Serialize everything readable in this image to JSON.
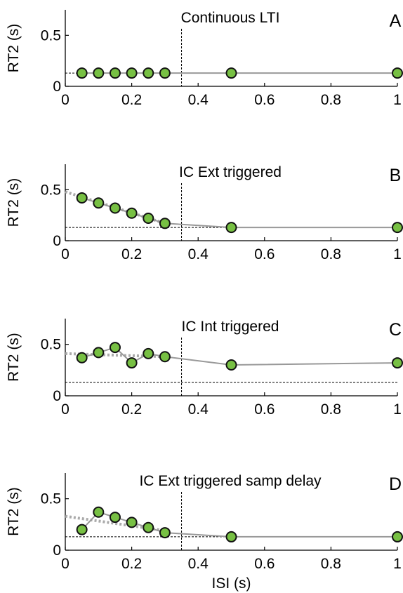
{
  "x_axis_label": "ISI (s)",
  "chart_data": [
    {
      "type": "line",
      "panel_letter": "A",
      "title": "Continuous LTI",
      "ylabel": "RT2 (s)",
      "xlabel": "",
      "xlim": [
        0,
        1
      ],
      "ylim": [
        0,
        0.75
      ],
      "xticks": [
        "0",
        "0.2",
        "0.4",
        "0.6",
        "0.8",
        "1"
      ],
      "yticks": [
        "0",
        "0.5"
      ],
      "x": [
        0.05,
        0.1,
        0.15,
        0.2,
        0.25,
        0.3,
        0.5,
        1
      ],
      "y": [
        0.13,
        0.13,
        0.13,
        0.13,
        0.13,
        0.13,
        0.13,
        0.13
      ],
      "baseline": 0.13,
      "vline_x": 0.35,
      "trend": null
    },
    {
      "type": "line",
      "panel_letter": "B",
      "title": "IC Ext triggered",
      "ylabel": "RT2 (s)",
      "xlabel": "",
      "xlim": [
        0,
        1
      ],
      "ylim": [
        0,
        0.75
      ],
      "xticks": [
        "0",
        "0.2",
        "0.4",
        "0.6",
        "0.8",
        "1"
      ],
      "yticks": [
        "0",
        "0.5"
      ],
      "x": [
        0.05,
        0.1,
        0.15,
        0.2,
        0.25,
        0.3,
        0.5,
        1
      ],
      "y": [
        0.42,
        0.37,
        0.32,
        0.27,
        0.22,
        0.17,
        0.13,
        0.13
      ],
      "baseline": 0.13,
      "vline_x": 0.35,
      "trend": {
        "x": [
          0,
          0.3
        ],
        "y": [
          0.48,
          0.17
        ]
      }
    },
    {
      "type": "line",
      "panel_letter": "C",
      "title": "IC Int triggered",
      "ylabel": "RT2 (s)",
      "xlabel": "",
      "xlim": [
        0,
        1
      ],
      "ylim": [
        0,
        0.75
      ],
      "xticks": [
        "0",
        "0.2",
        "0.4",
        "0.6",
        "0.8",
        "1"
      ],
      "yticks": [
        "0",
        "0.5"
      ],
      "x": [
        0.05,
        0.1,
        0.15,
        0.2,
        0.25,
        0.3,
        0.5,
        1
      ],
      "y": [
        0.37,
        0.42,
        0.47,
        0.32,
        0.41,
        0.38,
        0.3,
        0.32
      ],
      "baseline": 0.13,
      "vline_x": 0.35,
      "trend": {
        "x": [
          0,
          0.3
        ],
        "y": [
          0.41,
          0.38
        ]
      }
    },
    {
      "type": "line",
      "panel_letter": "D",
      "title": "IC Ext triggered samp delay",
      "ylabel": "RT2 (s)",
      "xlabel": "ISI (s)",
      "xlim": [
        0,
        1
      ],
      "ylim": [
        0,
        0.75
      ],
      "xticks": [
        "0",
        "0.2",
        "0.4",
        "0.6",
        "0.8",
        "1"
      ],
      "yticks": [
        "0",
        "0.5"
      ],
      "x": [
        0.05,
        0.1,
        0.15,
        0.2,
        0.25,
        0.3,
        0.5,
        1
      ],
      "y": [
        0.2,
        0.37,
        0.32,
        0.27,
        0.22,
        0.17,
        0.13,
        0.13
      ],
      "baseline": 0.13,
      "vline_x": 0.35,
      "trend": {
        "x": [
          0,
          0.3
        ],
        "y": [
          0.33,
          0.19
        ]
      }
    }
  ],
  "colors": {
    "marker_fill": "#77c043",
    "marker_edge": "#111111",
    "data_line": "#999999",
    "trend_line": "#aaaaaa",
    "ref_line": "#000000"
  }
}
